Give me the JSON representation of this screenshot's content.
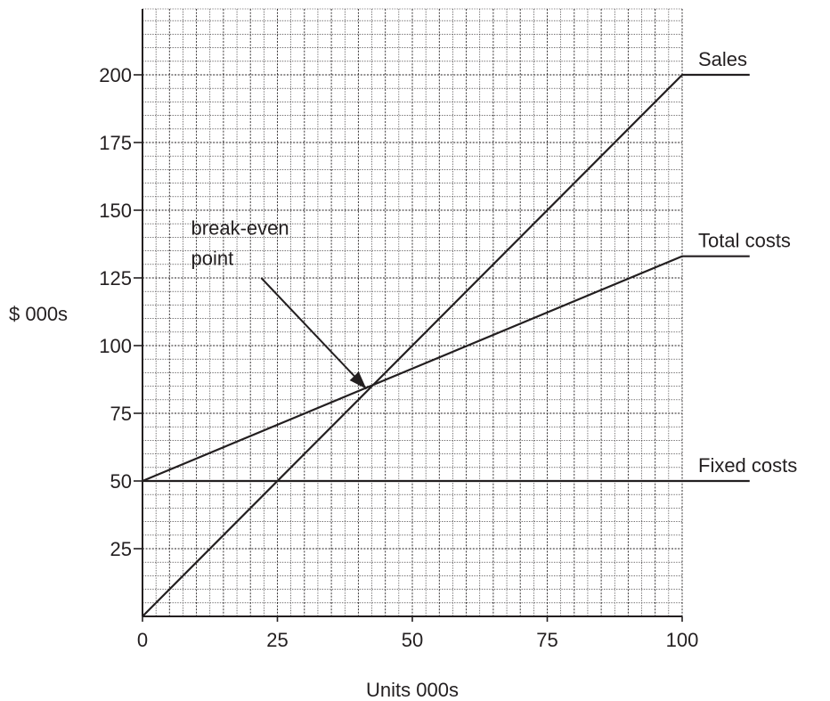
{
  "chart_data": {
    "type": "line",
    "title": "",
    "xlabel": "Units 000s",
    "ylabel": "$ 000s",
    "xlim": [
      0,
      100
    ],
    "ylim": [
      0,
      220
    ],
    "x_ticks": [
      0,
      25,
      50,
      75,
      100
    ],
    "x_tick_labels": [
      "0",
      "25",
      "50",
      "75",
      "100"
    ],
    "y_ticks": [
      25,
      50,
      75,
      100,
      125,
      150,
      175,
      200
    ],
    "y_tick_labels": [
      "25",
      "50",
      "75",
      "100",
      "125",
      "150",
      "175",
      "200"
    ],
    "grid": true,
    "minor_grid_step": {
      "x": 2.5,
      "y": 5
    },
    "series": [
      {
        "name": "Sales",
        "x": [
          0,
          100
        ],
        "y": [
          0,
          200
        ],
        "label_x": 100,
        "extension_to_x": 112.5
      },
      {
        "name": "Total costs",
        "x": [
          0,
          100
        ],
        "y": [
          50,
          133
        ],
        "label_x": 100,
        "extension_to_x": 112.5
      },
      {
        "name": "Fixed costs",
        "x": [
          0,
          100
        ],
        "y": [
          50,
          50
        ],
        "label_x": 100,
        "extension_to_x": 112.5
      }
    ],
    "annotations": [
      {
        "lines": [
          "break-even",
          "point"
        ],
        "text_x": 9,
        "text_y": 141,
        "arrow_from": [
          22,
          125
        ],
        "arrow_to": [
          41.5,
          84
        ]
      }
    ]
  }
}
